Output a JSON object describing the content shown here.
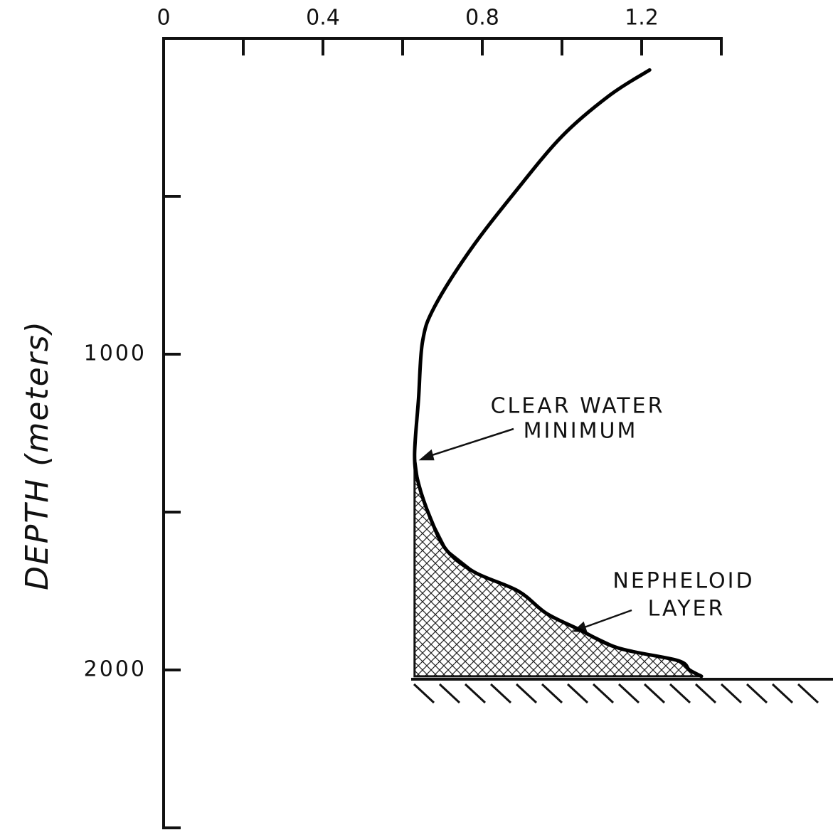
{
  "chart_data": {
    "type": "line",
    "ylabel": "DEPTH (meters)",
    "xlim": [
      0,
      1.4
    ],
    "xticks": [
      0,
      0.4,
      0.8,
      1.2
    ],
    "xminor_ticks": [
      0.2,
      0.6,
      1.0,
      1.4
    ],
    "ylim": [
      0,
      2500
    ],
    "yticks": [
      1000,
      2000
    ],
    "yminor_ticks": [
      500,
      1500,
      2500
    ],
    "y_inverted": true,
    "x_axis_position": "top",
    "series": [
      {
        "color": "#000000",
        "x": [
          1.22,
          1.12,
          1.0,
          0.88,
          0.77,
          0.68,
          0.65,
          0.64,
          0.63,
          0.64,
          0.67,
          0.71,
          0.78,
          0.89,
          0.96,
          1.04,
          1.14,
          1.29,
          1.32,
          1.35
        ],
        "values": [
          100,
          180,
          310,
          490,
          670,
          850,
          960,
          1140,
          1320,
          1410,
          1520,
          1620,
          1690,
          1750,
          1820,
          1870,
          1930,
          1970,
          2000,
          2020
        ]
      }
    ],
    "annotations": [
      {
        "lines": [
          "CLEAR WATER",
          "MINIMUM"
        ]
      },
      {
        "lines": [
          "NEPHELOID",
          "LAYER"
        ]
      }
    ]
  }
}
